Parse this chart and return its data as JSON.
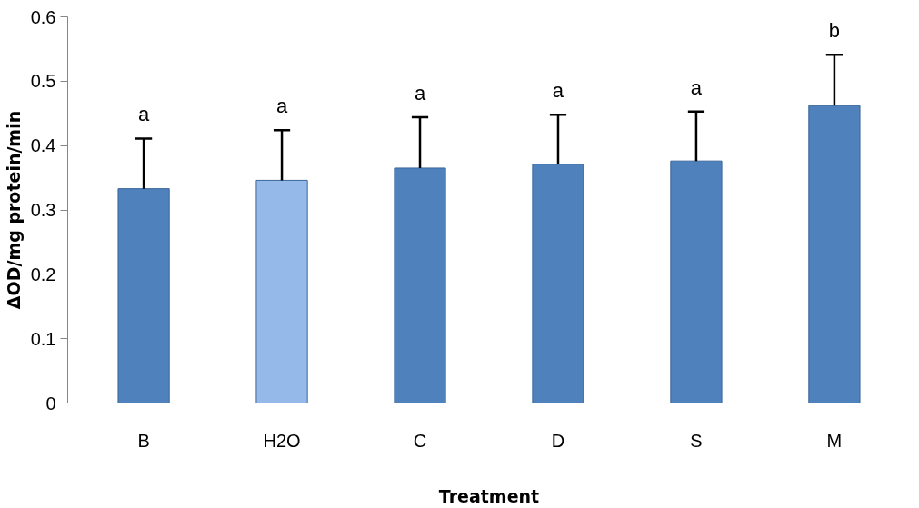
{
  "chart_data": {
    "type": "bar",
    "xlabel": "Treatment",
    "ylabel": "ΔOD/mg protein/min",
    "categories": [
      "B",
      "H2O",
      "C",
      "D",
      "S",
      "M"
    ],
    "values": [
      0.333,
      0.346,
      0.365,
      0.371,
      0.376,
      0.462
    ],
    "colors": [
      "#4f81bd",
      "#95b9e8",
      "#4f81bd",
      "#4f81bd",
      "#4f81bd",
      "#4f81bd"
    ],
    "errors": [
      [
        0.333,
        0.411
      ],
      [
        0.346,
        0.424
      ],
      [
        0.365,
        0.444
      ],
      [
        0.371,
        0.448
      ],
      [
        0.376,
        0.453
      ],
      [
        0.462,
        0.541
      ]
    ],
    "ylim": [
      0,
      0.6
    ],
    "yticks": [
      {
        "value": 0,
        "label": "0"
      },
      0.1,
      0.2,
      0.3,
      0.4,
      0.5,
      0.6
    ],
    "grid": false,
    "annotations": [
      "a",
      "a",
      "a",
      "a",
      "a",
      "b"
    ]
  }
}
